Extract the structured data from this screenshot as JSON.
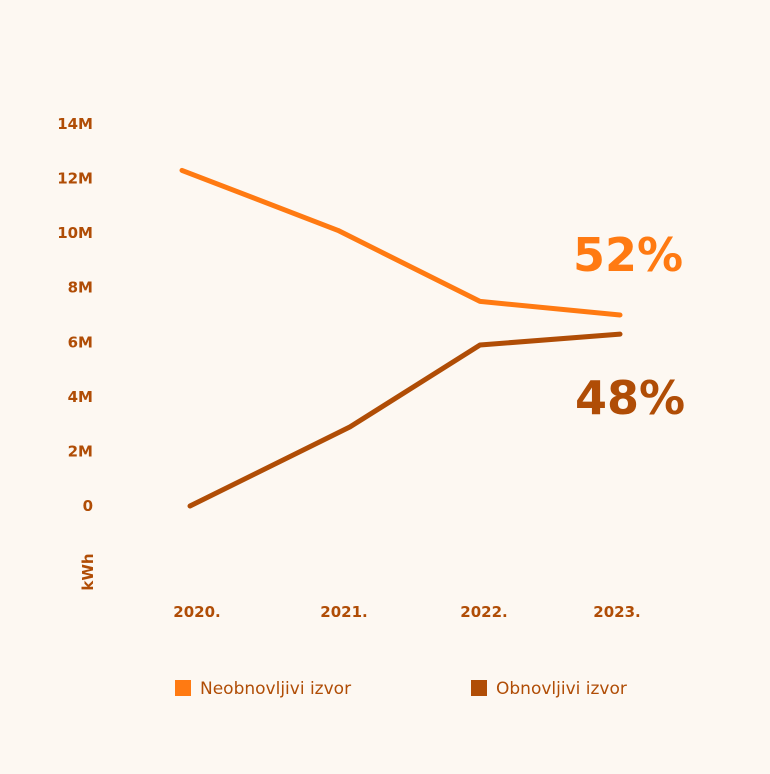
{
  "colors": {
    "background": "#fdf8f2",
    "series_a": "#ff7a12",
    "series_b": "#b04d06",
    "axis_text": "#b04d06"
  },
  "chart_data": {
    "type": "line",
    "categories": [
      "2020.",
      "2021.",
      "2022.",
      "2023."
    ],
    "series": [
      {
        "name": "Neobnovljivi izvor",
        "values": [
          12300000,
          10100000,
          7500000,
          7000000
        ],
        "end_label": "52%",
        "color": "#ff7a12"
      },
      {
        "name": "Obnovljivi izvor",
        "values": [
          0,
          2900000,
          5900000,
          6300000
        ],
        "end_label": "48%",
        "color": "#b04d06"
      }
    ],
    "ylabel": "kWh",
    "ylim": [
      0,
      14000000
    ],
    "y_ticks": [
      {
        "value": 0,
        "label": "0"
      },
      {
        "value": 2000000,
        "label": "2M"
      },
      {
        "value": 4000000,
        "label": "4M"
      },
      {
        "value": 6000000,
        "label": "6M"
      },
      {
        "value": 8000000,
        "label": "8M"
      },
      {
        "value": 10000000,
        "label": "10M"
      },
      {
        "value": 12000000,
        "label": "12M"
      },
      {
        "value": 14000000,
        "label": "14M"
      }
    ],
    "legend": "bottom"
  }
}
